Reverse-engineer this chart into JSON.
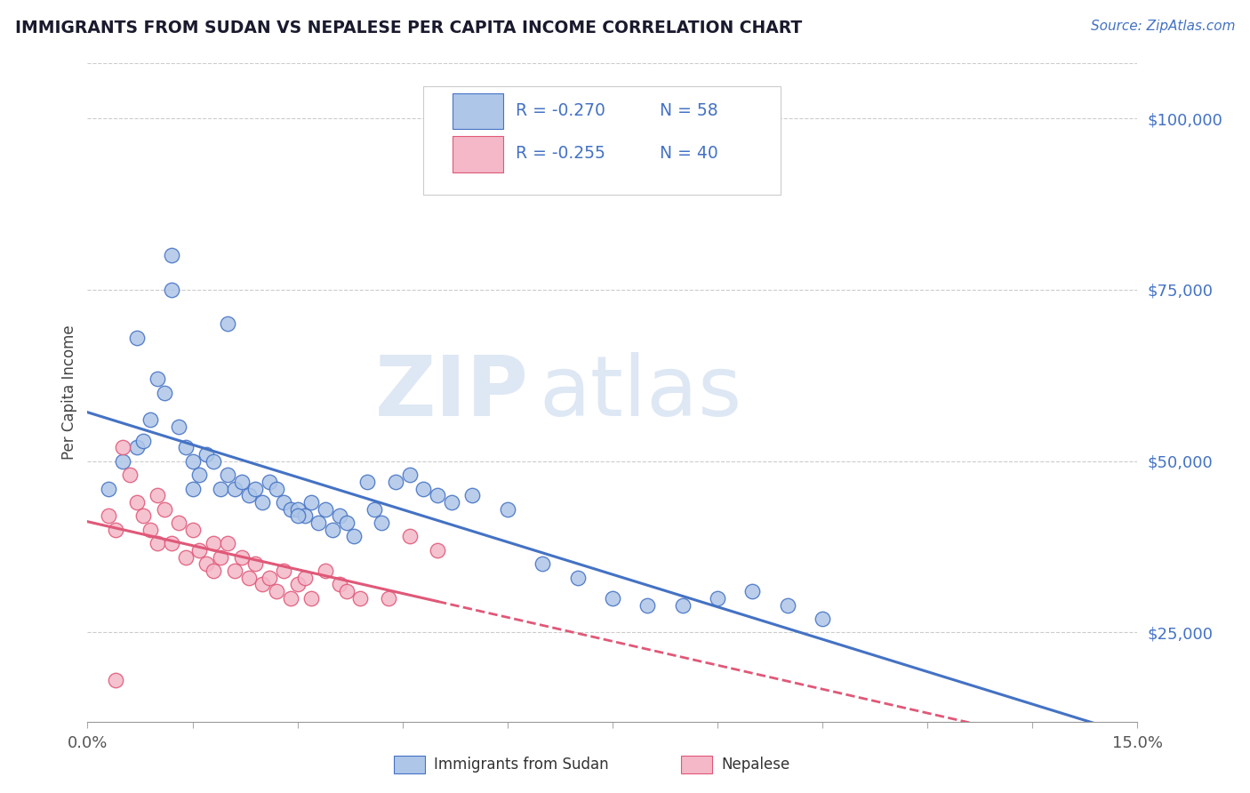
{
  "title": "IMMIGRANTS FROM SUDAN VS NEPALESE PER CAPITA INCOME CORRELATION CHART",
  "source": "Source: ZipAtlas.com",
  "ylabel": "Per Capita Income",
  "xlim": [
    0.0,
    0.15
  ],
  "ylim": [
    12000,
    108000
  ],
  "yticks": [
    25000,
    50000,
    75000,
    100000
  ],
  "ytick_labels": [
    "$25,000",
    "$50,000",
    "$75,000",
    "$100,000"
  ],
  "legend_r1": "R = -0.270",
  "legend_n1": "N = 58",
  "legend_r2": "R = -0.255",
  "legend_n2": "N = 40",
  "watermark_zip": "ZIP",
  "watermark_atlas": "atlas",
  "blue_color": "#aec6e8",
  "pink_color": "#f4b8c8",
  "line_blue": "#4472c4",
  "line_pink": "#e05878",
  "axis_color": "#4472c4",
  "source_color": "#4472c4",
  "blue_scatter_x": [
    0.003,
    0.005,
    0.007,
    0.008,
    0.009,
    0.01,
    0.011,
    0.012,
    0.013,
    0.014,
    0.015,
    0.015,
    0.016,
    0.017,
    0.018,
    0.019,
    0.02,
    0.021,
    0.022,
    0.023,
    0.024,
    0.025,
    0.026,
    0.027,
    0.028,
    0.029,
    0.03,
    0.031,
    0.032,
    0.033,
    0.034,
    0.035,
    0.036,
    0.037,
    0.038,
    0.04,
    0.041,
    0.042,
    0.044,
    0.046,
    0.048,
    0.05,
    0.052,
    0.055,
    0.06,
    0.065,
    0.07,
    0.075,
    0.08,
    0.085,
    0.09,
    0.095,
    0.1,
    0.105,
    0.007,
    0.012,
    0.02,
    0.03
  ],
  "blue_scatter_y": [
    46000,
    50000,
    52000,
    53000,
    56000,
    62000,
    60000,
    80000,
    55000,
    52000,
    50000,
    46000,
    48000,
    51000,
    50000,
    46000,
    48000,
    46000,
    47000,
    45000,
    46000,
    44000,
    47000,
    46000,
    44000,
    43000,
    43000,
    42000,
    44000,
    41000,
    43000,
    40000,
    42000,
    41000,
    39000,
    47000,
    43000,
    41000,
    47000,
    48000,
    46000,
    45000,
    44000,
    45000,
    43000,
    35000,
    33000,
    30000,
    29000,
    29000,
    30000,
    31000,
    29000,
    27000,
    68000,
    75000,
    70000,
    42000
  ],
  "pink_scatter_x": [
    0.003,
    0.004,
    0.005,
    0.006,
    0.007,
    0.008,
    0.009,
    0.01,
    0.01,
    0.011,
    0.012,
    0.013,
    0.014,
    0.015,
    0.016,
    0.017,
    0.018,
    0.018,
    0.019,
    0.02,
    0.021,
    0.022,
    0.023,
    0.024,
    0.025,
    0.026,
    0.027,
    0.028,
    0.029,
    0.03,
    0.031,
    0.032,
    0.034,
    0.036,
    0.037,
    0.039,
    0.043,
    0.046,
    0.05,
    0.004
  ],
  "pink_scatter_y": [
    42000,
    40000,
    52000,
    48000,
    44000,
    42000,
    40000,
    45000,
    38000,
    43000,
    38000,
    41000,
    36000,
    40000,
    37000,
    35000,
    38000,
    34000,
    36000,
    38000,
    34000,
    36000,
    33000,
    35000,
    32000,
    33000,
    31000,
    34000,
    30000,
    32000,
    33000,
    30000,
    34000,
    32000,
    31000,
    30000,
    30000,
    39000,
    37000,
    18000
  ],
  "xtick_positions": [
    0.0,
    0.015,
    0.03,
    0.045,
    0.06,
    0.075,
    0.09,
    0.105,
    0.12,
    0.135,
    0.15
  ],
  "xtick_labels_show": {
    "0.0": "0.0%",
    "0.15": "15.0%"
  }
}
